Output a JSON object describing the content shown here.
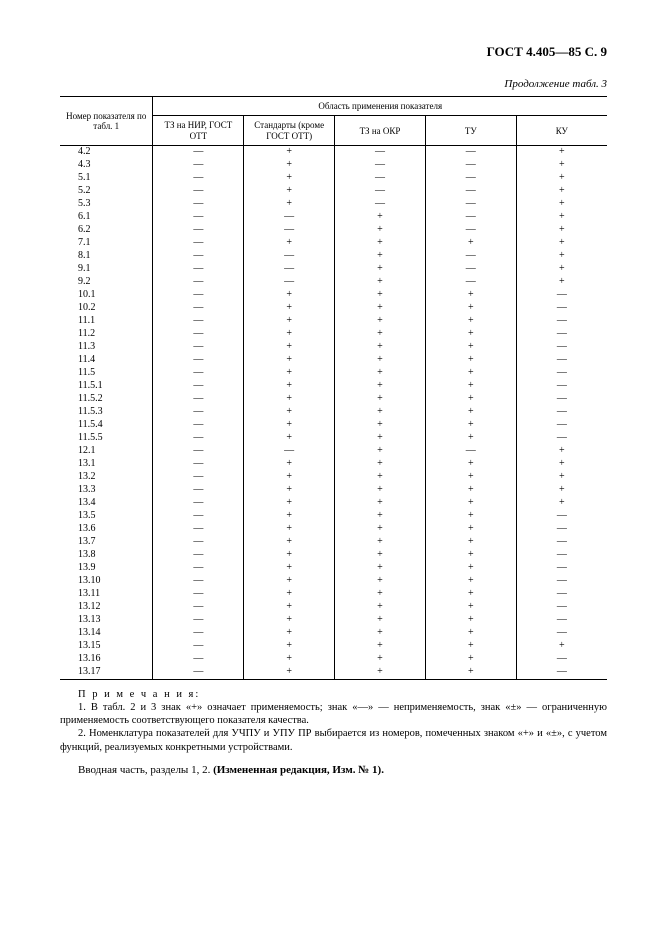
{
  "header": "ГОСТ 4.405—85 С. 9",
  "continuation": "Продолжение табл. 3",
  "table": {
    "col_rowhead": "Номер показателя по табл. 1",
    "col_group": "Область применения показателя",
    "col1": "ТЗ на НИР, ГОСТ ОТТ",
    "col2": "Стандарты (кроме ГОСТ ОТТ)",
    "col3": "ТЗ на ОКР",
    "col4": "ТУ",
    "col5": "КУ",
    "widths": [
      "17%",
      "16.6%",
      "16.6%",
      "16.6%",
      "16.6%",
      "16.6%"
    ],
    "rows": [
      [
        "4.2",
        "—",
        "+",
        "—",
        "—",
        "+"
      ],
      [
        "4.3",
        "—",
        "+",
        "—",
        "—",
        "+"
      ],
      [
        "5.1",
        "—",
        "+",
        "—",
        "—",
        "+"
      ],
      [
        "5.2",
        "—",
        "+",
        "—",
        "—",
        "+"
      ],
      [
        "5.3",
        "—",
        "+",
        "—",
        "—",
        "+"
      ],
      [
        "6.1",
        "—",
        "—",
        "+",
        "—",
        "+"
      ],
      [
        "6.2",
        "—",
        "—",
        "+",
        "—",
        "+"
      ],
      [
        "7.1",
        "—",
        "+",
        "+",
        "+",
        "+"
      ],
      [
        "8.1",
        "—",
        "—",
        "+",
        "—",
        "+"
      ],
      [
        "9.1",
        "—",
        "—",
        "+",
        "—",
        "+"
      ],
      [
        "9.2",
        "—",
        "—",
        "+",
        "—",
        "+"
      ],
      [
        "10.1",
        "—",
        "+",
        "+",
        "+",
        "—"
      ],
      [
        "10.2",
        "—",
        "+",
        "+",
        "+",
        "—"
      ],
      [
        "11.1",
        "—",
        "+",
        "+",
        "+",
        "—"
      ],
      [
        "11.2",
        "—",
        "+",
        "+",
        "+",
        "—"
      ],
      [
        "11.3",
        "—",
        "+",
        "+",
        "+",
        "—"
      ],
      [
        "11.4",
        "—",
        "+",
        "+",
        "+",
        "—"
      ],
      [
        "11.5",
        "—",
        "+",
        "+",
        "+",
        "—"
      ],
      [
        "11.5.1",
        "—",
        "+",
        "+",
        "+",
        "—"
      ],
      [
        "11.5.2",
        "—",
        "+",
        "+",
        "+",
        "—"
      ],
      [
        "11.5.3",
        "—",
        "+",
        "+",
        "+",
        "—"
      ],
      [
        "11.5.4",
        "—",
        "+",
        "+",
        "+",
        "—"
      ],
      [
        "11.5.5",
        "—",
        "+",
        "+",
        "+",
        "—"
      ],
      [
        "12.1",
        "—",
        "—",
        "+",
        "—",
        "+"
      ],
      [
        "13.1",
        "—",
        "+",
        "+",
        "+",
        "+"
      ],
      [
        "13.2",
        "—",
        "+",
        "+",
        "+",
        "+"
      ],
      [
        "13.3",
        "—",
        "+",
        "+",
        "+",
        "+"
      ],
      [
        "13.4",
        "—",
        "+",
        "+",
        "+",
        "+"
      ],
      [
        "13.5",
        "—",
        "+",
        "+",
        "+",
        "—"
      ],
      [
        "13.6",
        "—",
        "+",
        "+",
        "+",
        "—"
      ],
      [
        "13.7",
        "—",
        "+",
        "+",
        "+",
        "—"
      ],
      [
        "13.8",
        "—",
        "+",
        "+",
        "+",
        "—"
      ],
      [
        "13.9",
        "—",
        "+",
        "+",
        "+",
        "—"
      ],
      [
        "13.10",
        "—",
        "+",
        "+",
        "+",
        "—"
      ],
      [
        "13.11",
        "—",
        "+",
        "+",
        "+",
        "—"
      ],
      [
        "13.12",
        "—",
        "+",
        "+",
        "+",
        "—"
      ],
      [
        "13.13",
        "—",
        "+",
        "+",
        "+",
        "—"
      ],
      [
        "13.14",
        "—",
        "+",
        "+",
        "+",
        "—"
      ],
      [
        "13.15",
        "—",
        "+",
        "+",
        "+",
        "+"
      ],
      [
        "13.16",
        "—",
        "+",
        "+",
        "+",
        "—"
      ],
      [
        "13.17",
        "—",
        "+",
        "+",
        "+",
        "—"
      ]
    ]
  },
  "notes_title": "П р и м е ч а н и я:",
  "note1": "1.  В табл. 2 и 3 знак «+» означает применяемость; знак «—» — неприменяемость, знак «±» — ограниченную применяемость соответствующего показателя качества.",
  "note2": "2.  Номенклатура показателей для УЧПУ и УПУ ПР выбирается из номеров, помеченных знаком «+» и «±», с учетом функций, реализуемых конкретными устройствами.",
  "final_prefix": "Вводная часть, разделы 1, 2. ",
  "final_bold": "(Измененная редакция, Изм. № 1)."
}
